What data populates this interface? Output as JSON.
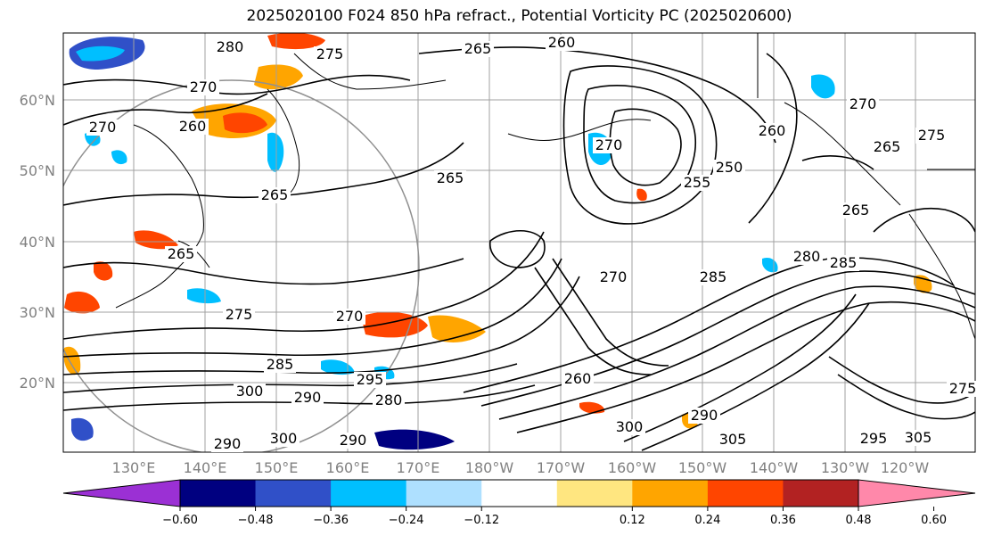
{
  "title": "2025020100 F024 850 hPa refract., Potential Vorticity PC (2025020600)",
  "lat_labels": [
    "60°N",
    "50°N",
    "40°N",
    "30°N",
    "20°N"
  ],
  "lon_labels": [
    "130°E",
    "140°E",
    "150°E",
    "160°E",
    "170°E",
    "180°W",
    "170°W",
    "160°W",
    "150°W",
    "140°W",
    "130°W",
    "120°W"
  ],
  "colorbar": {
    "colors": [
      "#9b30d4",
      "#000080",
      "#3050c8",
      "#00bfff",
      "#aee0ff",
      "#ffffff",
      "#ffe680",
      "#ffa500",
      "#ff4500",
      "#b22222",
      "#ff88aa"
    ],
    "tick_labels": [
      "−0.60",
      "−0.48",
      "−0.36",
      "−0.24",
      "−0.12",
      "0.12",
      "0.24",
      "0.36",
      "0.48",
      "0.60"
    ]
  },
  "contour_labels": [
    "280",
    "275",
    "265",
    "260",
    "270",
    "270",
    "260",
    "265",
    "265",
    "250",
    "255",
    "265",
    "270",
    "275",
    "275",
    "270",
    "265",
    "285",
    "285",
    "280",
    "270",
    "295",
    "300",
    "290",
    "280",
    "290",
    "300",
    "290",
    "305",
    "295",
    "305",
    "290",
    "300",
    "260",
    "285",
    "260",
    "270",
    "265",
    "275"
  ]
}
